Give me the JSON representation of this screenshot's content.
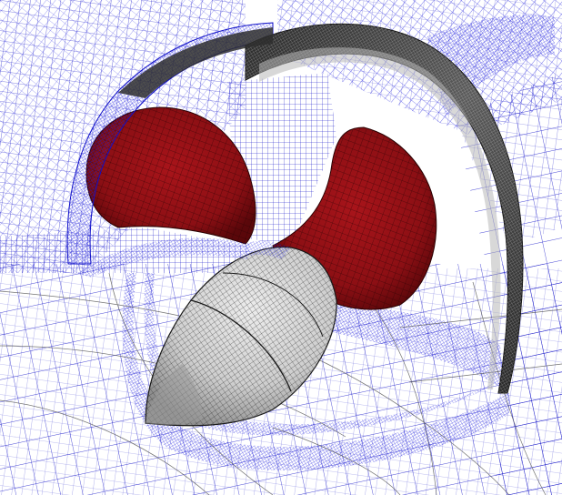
{
  "figure": {
    "subject": "propeller-duct-mesh",
    "colors": {
      "background": "#ffffff",
      "mesh_line": "#1010c8",
      "mesh_dense": "#1e1ee0",
      "blade_fill": "#8c0f14",
      "blade_dark": "#5a070a",
      "hub_fill": "#d2d2d2",
      "hub_shade": "#9a9a9a",
      "duct_fill": "#3a3a3a",
      "duct_light": "#b8b8b8",
      "surface_grid": "#1a1a1a",
      "sparse_line": "#505050"
    },
    "parts": [
      "outer-mesh",
      "duct-ring",
      "upper-left-blade",
      "right-blade",
      "hub",
      "wake-lines"
    ]
  }
}
